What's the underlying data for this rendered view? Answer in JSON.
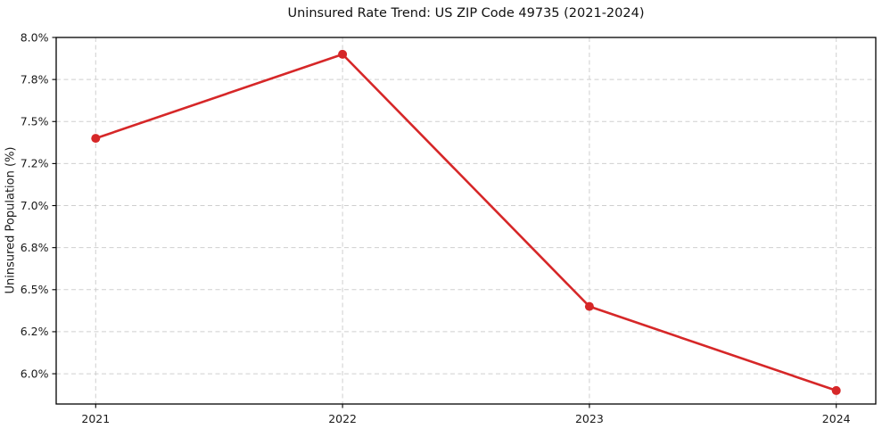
{
  "chart_data": {
    "type": "line",
    "title": "Uninsured Rate Trend: US ZIP Code 49735 (2021-2024)",
    "xlabel": "",
    "ylabel": "Uninsured Population (%)",
    "x": [
      2021,
      2022,
      2023,
      2024
    ],
    "values": [
      7.4,
      7.9,
      6.4,
      5.9
    ],
    "xticks": {
      "values": [
        2021,
        2022,
        2023,
        2024
      ],
      "labels": [
        "2021",
        "2022",
        "2023",
        "2024"
      ]
    },
    "yticks": {
      "values": [
        6.0,
        6.25,
        6.5,
        6.75,
        7.0,
        7.25,
        7.5,
        7.75,
        8.0
      ],
      "labels": [
        "6.0%",
        "6.2%",
        "6.5%",
        "6.8%",
        "7.0%",
        "7.2%",
        "7.5%",
        "7.8%",
        "8.0%"
      ]
    },
    "xlim": [
      2020.84,
      2024.16
    ],
    "ylim": [
      5.82,
      8.0
    ],
    "grid": true,
    "grid_style": "dashed",
    "legend": false,
    "line_color": "#d62728",
    "marker": "circle"
  },
  "colors": {
    "background": "#ffffff",
    "grid": "#cfcfcf",
    "spine": "#000000",
    "tick_text": "#1a1a1a",
    "title_text": "#111111"
  }
}
